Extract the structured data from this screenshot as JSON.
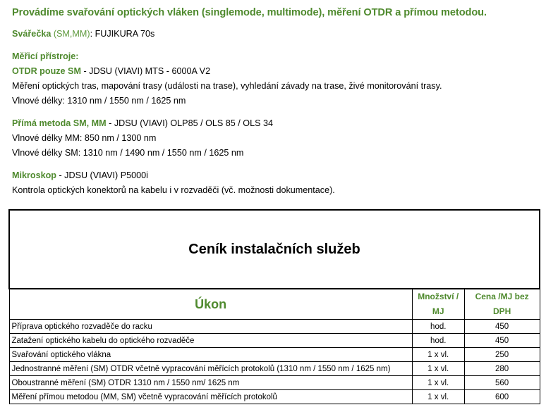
{
  "header": {
    "title": "Provádíme svařování optických vláken (singlemode, multimode), měření OTDR a přímou metodou."
  },
  "sections": [
    {
      "lines": [
        [
          {
            "text": "Svářečka",
            "style": "bold-green"
          },
          {
            "text": " (SM,MM)",
            "style": "green"
          },
          {
            "text": ": FUJIKURA 70s",
            "style": "plain"
          }
        ]
      ]
    },
    {
      "lines": [
        [
          {
            "text": "Měřicí přístroje:",
            "style": "bold-green"
          }
        ],
        [
          {
            "text": "OTDR pouze SM",
            "style": "bold-green"
          },
          {
            "text": " - JDSU (VIAVI) MTS - 6000A V2",
            "style": "plain"
          }
        ],
        [
          {
            "text": "Měření optických tras, mapování trasy (události na trase), vyhledání závady na trase, živé monitorování trasy.",
            "style": "plain"
          }
        ],
        [
          {
            "text": "Vlnové délky: 1310 nm / 1550 nm / 1625 nm",
            "style": "plain"
          }
        ]
      ]
    },
    {
      "lines": [
        [
          {
            "text": "Přímá metoda SM, MM",
            "style": "bold-green"
          },
          {
            "text": " - JDSU (VIAVI) OLP85 / OLS 85 / OLS 34",
            "style": "plain"
          }
        ],
        [
          {
            "text": "Vlnové délky MM: 850 nm / 1300 nm",
            "style": "plain"
          }
        ],
        [
          {
            "text": "Vlnové délky SM: 1310 nm / 1490 nm / 1550 nm / 1625 nm",
            "style": "plain"
          }
        ]
      ]
    },
    {
      "lines": [
        [
          {
            "text": "Mikroskop",
            "style": "bold-green"
          },
          {
            "text": " - JDSU (VIAVI) P5000i",
            "style": "plain"
          }
        ],
        [
          {
            "text": "Kontrola optických konektorů na kabelu i v rozvaděči (vč. možnosti dokumentace).",
            "style": "plain"
          }
        ]
      ]
    }
  ],
  "table": {
    "title": "Ceník instalačních služeb",
    "columns": [
      "Úkon",
      "Množství / MJ",
      "Cena /MJ bez DPH"
    ],
    "rows": [
      [
        "Příprava optického rozvaděče do racku",
        "hod.",
        450
      ],
      [
        "Zatažení optického kabelu do optického rozvaděče",
        "hod.",
        450
      ],
      [
        "Svařování optického vlákna",
        "1 x vl.",
        250
      ],
      [
        "Jednostranné měření (SM) OTDR včetně vypracování měřících protokolů (1310 nm / 1550 nm / 1625 nm)",
        "1 x vl.",
        280
      ],
      [
        "Oboustranné měření (SM) OTDR 1310 nm / 1550 nm/ 1625 nm",
        "1 x vl.",
        560
      ],
      [
        "Měření přímou metodou (MM, SM) včetně vypracování měřících protokolů",
        "1 x vl.",
        600
      ]
    ]
  }
}
